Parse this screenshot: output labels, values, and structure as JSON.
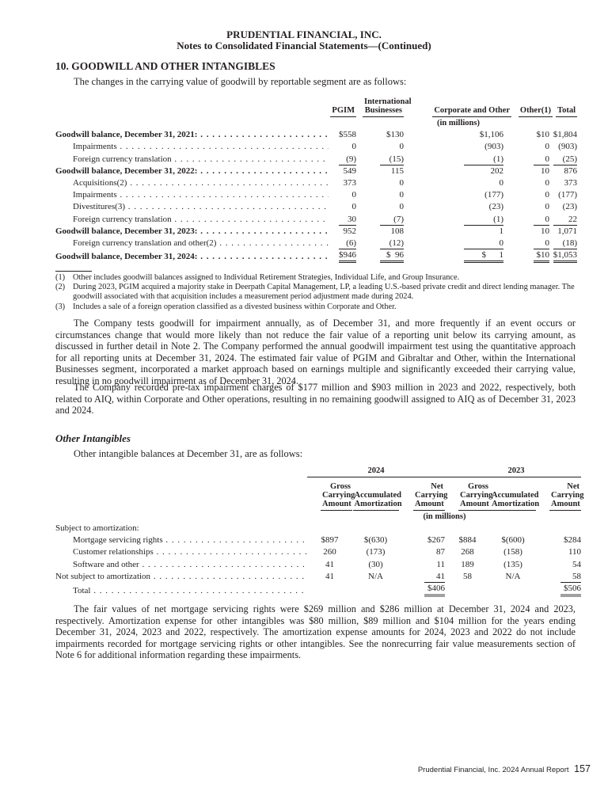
{
  "header": {
    "company": "PRUDENTIAL FINANCIAL, INC.",
    "subtitle": "Notes to Consolidated Financial Statements—(Continued)"
  },
  "section": {
    "title": "10. GOODWILL AND OTHER INTANGIBLES",
    "intro": "The changes in the carrying value of goodwill by reportable segment are as follows:"
  },
  "goodwill_table": {
    "columns": [
      "PGIM",
      "International Businesses",
      "Corporate and Other",
      "Other(1)",
      "Total"
    ],
    "unit": "(in millions)",
    "rows": [
      {
        "label": "Goodwill balance, December 31, 2021:",
        "bold": true,
        "values": [
          "$558",
          "$130",
          "$1,106",
          "$10",
          "$1,804"
        ]
      },
      {
        "label": "Impairments",
        "values": [
          "0",
          "0",
          "(903)",
          "0",
          "(903)"
        ]
      },
      {
        "label": "Foreign currency translation",
        "values": [
          "(9)",
          "(15)",
          "(1)",
          "0",
          "(25)"
        ],
        "underline": true
      },
      {
        "label": "Goodwill balance, December 31, 2022:",
        "bold": true,
        "values": [
          "549",
          "115",
          "202",
          "10",
          "876"
        ]
      },
      {
        "label": "Acquisitions(2)",
        "values": [
          "373",
          "0",
          "0",
          "0",
          "373"
        ]
      },
      {
        "label": "Impairments",
        "values": [
          "0",
          "0",
          "(177)",
          "0",
          "(177)"
        ]
      },
      {
        "label": "Divestitures(3)",
        "values": [
          "0",
          "0",
          "(23)",
          "0",
          "(23)"
        ]
      },
      {
        "label": "Foreign currency translation",
        "values": [
          "30",
          "(7)",
          "(1)",
          "0",
          "22"
        ],
        "underline": true
      },
      {
        "label": "Goodwill balance, December 31, 2023:",
        "bold": true,
        "values": [
          "952",
          "108",
          "1",
          "10",
          "1,071"
        ]
      },
      {
        "label": "Foreign currency translation and other(2)",
        "values": [
          "(6)",
          "(12)",
          "0",
          "0",
          "(18)"
        ],
        "underline": true
      },
      {
        "label": "Goodwill balance, December 31, 2024:",
        "bold": true,
        "values": [
          "$946",
          "$  96",
          "$      1",
          "$10",
          "$1,053"
        ],
        "double": true
      }
    ]
  },
  "footnotes": [
    {
      "n": "(1)",
      "text": "Other includes goodwill balances assigned to Individual Retirement Strategies, Individual Life, and Group Insurance."
    },
    {
      "n": "(2)",
      "text": "During 2023, PGIM acquired a majority stake in Deerpath Capital Management, LP, a leading U.S.-based private credit and direct lending manager. The goodwill associated with that acquisition includes a measurement period adjustment made during 2024."
    },
    {
      "n": "(3)",
      "text": "Includes a sale of a foreign operation classified as a divested business within Corporate and Other."
    }
  ],
  "paragraphs": [
    "The Company tests goodwill for impairment annually, as of December 31, and more frequently if an event occurs or circumstances change that would more likely than not reduce the fair value of a reporting unit below its carrying amount, as discussed in further detail in Note 2. The Company performed the annual goodwill impairment test using the quantitative approach for all reporting units at December 31, 2024. The estimated fair value of PGIM and Gibraltar and Other, within the International Businesses segment, incorporated a market approach based on earnings multiple and significantly exceeded their carrying value, resulting in no goodwill impairment as of December 31, 2024.",
    "The Company recorded pre-tax impairment charges of $177 million and $903 million in 2023 and 2022, respectively, both related to AIQ, within Corporate and Other operations, resulting in no remaining goodwill assigned to AIQ as of December 31, 2023 and 2024.",
    "The fair values of net mortgage servicing rights were $269 million and $286 million at December 31, 2024 and 2023, respectively. Amortization expense for other intangibles was $80 million, $89 million and $104 million for the years ending December 31, 2024, 2023 and 2022, respectively. The amortization expense amounts for 2024, 2023 and 2022 do not include impairments recorded for mortgage servicing rights or other intangibles. See the nonrecurring fair value measurements section of Note 6 for additional information regarding these impairments."
  ],
  "other_intangibles": {
    "title": "Other Intangibles",
    "intro": "Other intangible balances at December 31, are as follows:",
    "years": [
      "2024",
      "2023"
    ],
    "columns": [
      "Gross Carrying Amount",
      "Accumulated Amortization",
      "Net Carrying Amount",
      "Gross Carrying Amount",
      "Accumulated Amortization",
      "Net Carrying Amount"
    ],
    "unit": "(in millions)",
    "rows": [
      {
        "label": "Subject to amortization:",
        "indent": false,
        "nodots": true,
        "values": [
          "",
          "",
          "",
          "",
          "",
          ""
        ]
      },
      {
        "label": "Mortgage servicing rights",
        "indent": true,
        "values": [
          "$897",
          "$(630)",
          "$267",
          "$884",
          "$(600)",
          "$284"
        ]
      },
      {
        "label": "Customer relationships",
        "indent": true,
        "values": [
          "260",
          "(173)",
          "87",
          "268",
          "(158)",
          "110"
        ]
      },
      {
        "label": "Software and other",
        "indent": true,
        "values": [
          "41",
          "(30)",
          "11",
          "189",
          "(135)",
          "54"
        ]
      },
      {
        "label": "Not subject to amortization",
        "indent": false,
        "values": [
          "41",
          "N/A",
          "41",
          "58",
          "N/A",
          "58"
        ],
        "underline_net": true
      },
      {
        "label": "Total",
        "indent": true,
        "values": [
          "",
          "",
          "$406",
          "",
          "",
          "$506"
        ],
        "total": true
      }
    ]
  },
  "footer": {
    "text": "Prudential Financial, Inc. 2024 Annual Report",
    "page": "157"
  }
}
